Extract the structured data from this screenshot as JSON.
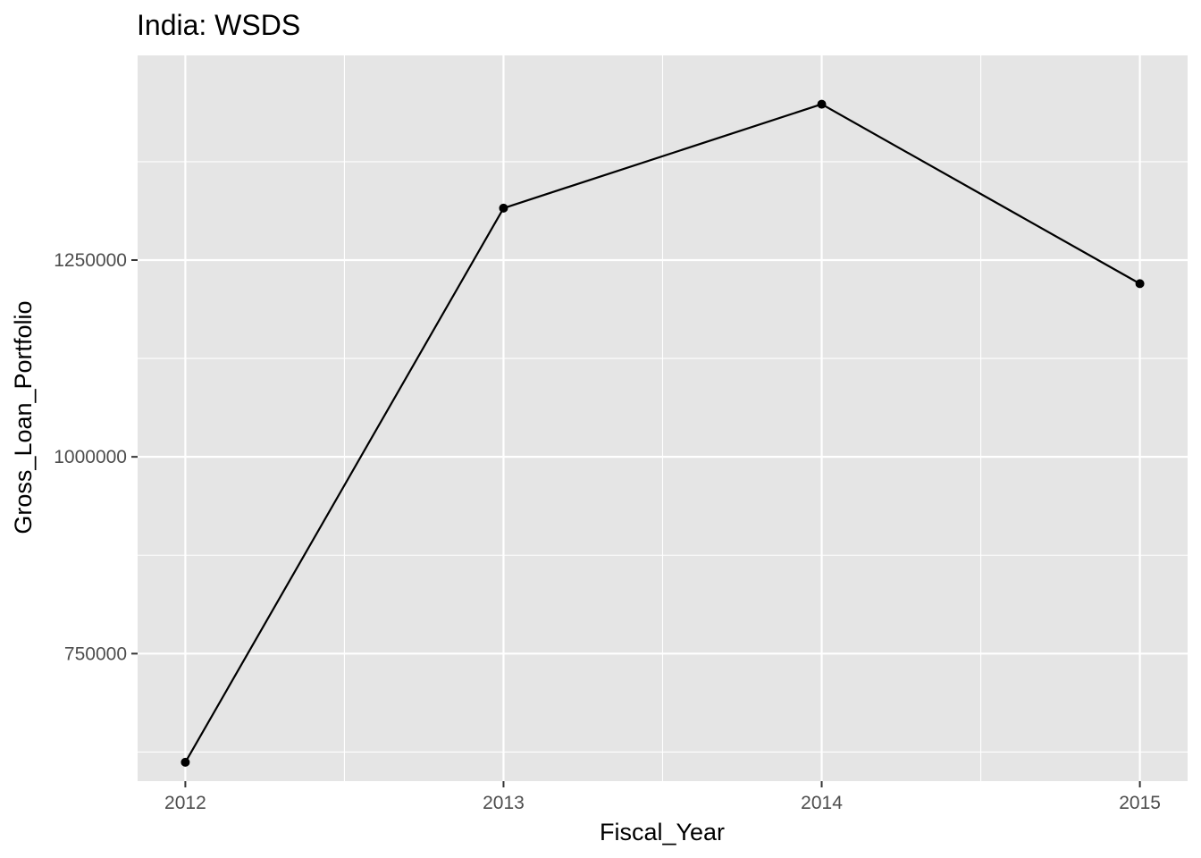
{
  "chart_data": {
    "type": "line",
    "title": "India:  WSDS",
    "xlabel": "Fiscal_Year",
    "ylabel": "Gross_Loan_Portfolio",
    "x": [
      2012,
      2013,
      2014,
      2015
    ],
    "xticks": [
      "2012",
      "2013",
      "2014",
      "2015"
    ],
    "xlim": [
      2011.85,
      2015.15
    ],
    "yticks": [
      750000,
      1000000,
      1250000
    ],
    "ytick_labels": [
      "750000",
      "1000000",
      "1250000"
    ],
    "ylim": [
      588000,
      1510000
    ],
    "series": [
      {
        "values": [
          612000,
          1316000,
          1448000,
          1220000
        ]
      }
    ],
    "grid": true,
    "legend": "none",
    "colors": {
      "panel": "#e5e5e5",
      "grid": "#ffffff",
      "line": "#000000",
      "tick": "#333333"
    }
  }
}
